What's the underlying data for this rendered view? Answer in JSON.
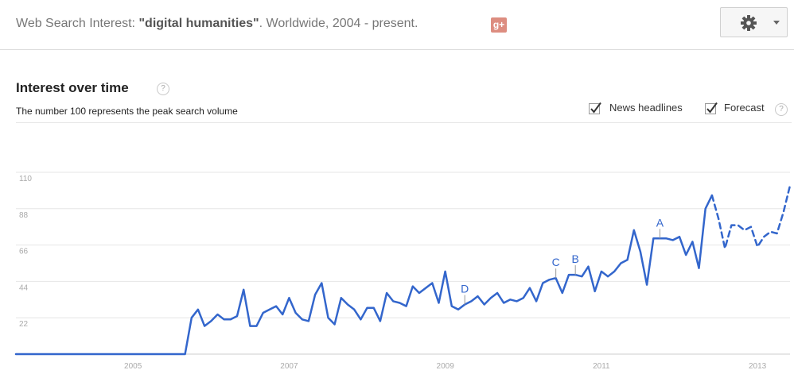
{
  "header": {
    "prefix": "Web Search Interest: ",
    "query": "\"digital humanities\"",
    "suffix": ". Worldwide, 2004 - present.",
    "gplus_label": "g+",
    "gear_icon": "gear-icon"
  },
  "section": {
    "title": "Interest over time",
    "help": "?",
    "subtitle": "The number 100 represents the peak search volume",
    "news_label": "News headlines",
    "news_checked": true,
    "forecast_label": "Forecast",
    "forecast_checked": true
  },
  "colors": {
    "line": "#3366cc",
    "grid": "#e6e6e6",
    "axis": "#cccccc"
  },
  "chart_data": {
    "type": "line",
    "title": "Interest over time",
    "xlabel": "",
    "ylabel": "",
    "x_ticks": [
      "2005",
      "2007",
      "2009",
      "2011",
      "2013"
    ],
    "y_ticks": [
      22,
      44,
      66,
      88,
      110
    ],
    "ylim": [
      0,
      110
    ],
    "xlim": [
      "2004-01",
      "2013-12"
    ],
    "grid": true,
    "series": [
      {
        "style": "solid",
        "x": [
          "2004-01",
          "2004-12",
          "2005-12",
          "2006-03",
          "2006-04",
          "2006-05",
          "2006-06",
          "2006-07",
          "2006-08",
          "2006-09",
          "2006-10",
          "2006-11",
          "2006-12",
          "2007-01",
          "2007-02",
          "2007-03",
          "2007-04",
          "2007-05",
          "2007-06",
          "2007-07",
          "2007-08",
          "2007-09",
          "2007-10",
          "2007-11",
          "2007-12",
          "2008-01",
          "2008-02",
          "2008-03",
          "2008-04",
          "2008-05",
          "2008-06",
          "2008-07",
          "2008-08",
          "2008-09",
          "2008-10",
          "2008-11",
          "2008-12",
          "2009-01",
          "2009-02",
          "2009-03",
          "2009-04",
          "2009-05",
          "2009-06",
          "2009-07",
          "2009-08",
          "2009-09",
          "2009-10",
          "2009-11",
          "2009-12",
          "2010-01",
          "2010-02",
          "2010-03",
          "2010-04",
          "2010-05",
          "2010-06",
          "2010-07",
          "2010-08",
          "2010-09",
          "2010-10",
          "2010-11",
          "2010-12",
          "2011-01",
          "2011-02",
          "2011-03",
          "2011-04",
          "2011-05",
          "2011-06",
          "2011-07",
          "2011-08",
          "2011-09",
          "2011-10",
          "2011-11",
          "2011-12",
          "2012-01",
          "2012-02",
          "2012-03",
          "2012-04",
          "2012-05",
          "2012-06",
          "2012-07",
          "2012-08",
          "2012-09",
          "2012-10",
          "2012-11",
          "2012-12"
        ],
        "values": [
          0,
          0,
          0,
          0,
          22,
          27,
          17,
          20,
          24,
          21,
          21,
          23,
          39,
          17,
          17,
          25,
          27,
          29,
          24,
          34,
          25,
          21,
          20,
          36,
          43,
          22,
          18,
          34,
          30,
          27,
          21,
          28,
          28,
          20,
          37,
          32,
          31,
          29,
          41,
          37,
          40,
          43,
          31,
          50,
          29,
          27,
          30,
          32,
          35,
          30,
          34,
          37,
          31,
          33,
          32,
          34,
          40,
          32,
          43,
          45,
          46,
          37,
          48,
          48,
          47,
          53,
          38,
          50,
          47,
          50,
          55,
          57,
          75,
          62,
          42,
          70,
          70,
          70,
          69,
          71,
          60,
          68,
          52,
          88,
          96
        ]
      },
      {
        "style": "dashed",
        "name": "Forecast",
        "x": [
          "2012-12",
          "2013-01",
          "2013-02",
          "2013-03",
          "2013-04",
          "2013-05",
          "2013-06",
          "2013-07",
          "2013-08",
          "2013-09",
          "2013-10",
          "2013-11",
          "2013-12"
        ],
        "values": [
          96,
          82,
          64,
          78,
          78,
          75,
          77,
          65,
          71,
          74,
          73,
          86,
          102
        ]
      }
    ],
    "annotations": [
      {
        "label": "A",
        "x": "2012-04"
      },
      {
        "label": "B",
        "x": "2011-03"
      },
      {
        "label": "C",
        "x": "2010-12"
      },
      {
        "label": "D",
        "x": "2009-10"
      }
    ]
  }
}
